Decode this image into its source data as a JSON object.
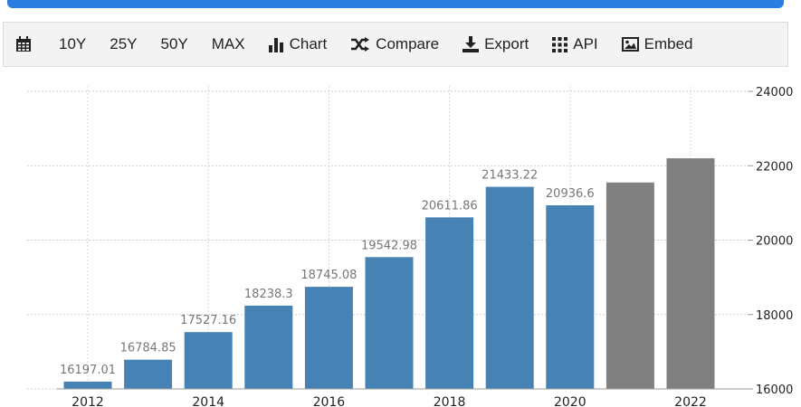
{
  "toolbar": {
    "items": [
      {
        "label": "",
        "icon": "calendar-icon"
      },
      {
        "label": "10Y"
      },
      {
        "label": "25Y"
      },
      {
        "label": "50Y"
      },
      {
        "label": "MAX"
      },
      {
        "label": "Chart",
        "icon": "bar-chart-icon"
      },
      {
        "label": "Compare",
        "icon": "shuffle-icon"
      },
      {
        "label": "Export",
        "icon": "download-icon"
      },
      {
        "label": "API",
        "icon": "grid-icon"
      },
      {
        "label": "Embed",
        "icon": "image-icon"
      }
    ]
  },
  "colors": {
    "accent": "#2a7de1",
    "actual_bar": "#4682b4",
    "forecast_bar": "#808080"
  },
  "chart_data": {
    "type": "bar",
    "x": [
      "2012",
      "2013",
      "2014",
      "2015",
      "2016",
      "2017",
      "2018",
      "2019",
      "2020",
      "2021",
      "2022"
    ],
    "series": [
      {
        "values": [
          16197.01,
          16784.85,
          17527.16,
          18238.3,
          18745.08,
          19542.98,
          20611.86,
          21433.22,
          20936.6,
          null,
          null
        ]
      },
      {
        "values": [
          null,
          null,
          null,
          null,
          null,
          null,
          null,
          null,
          null,
          21550,
          22200
        ]
      }
    ],
    "data_labels": [
      "16197.01",
      "16784.85",
      "17527.16",
      "18238.3",
      "18745.08",
      "19542.98",
      "20611.86",
      "21433.22",
      "20936.6",
      "",
      ""
    ],
    "x_tick_labels": [
      "2012",
      "",
      "2014",
      "",
      "2016",
      "",
      "2018",
      "",
      "2020",
      "",
      "2022"
    ],
    "y_ticks": [
      16000,
      18000,
      20000,
      22000,
      24000
    ],
    "ylim": [
      16000,
      24000
    ],
    "y_axis_side": "right",
    "grid": true,
    "legend": "none"
  }
}
